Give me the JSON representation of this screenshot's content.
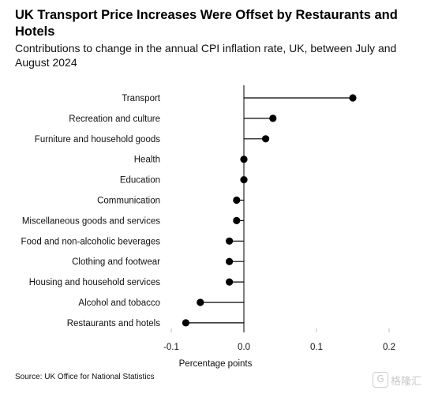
{
  "title": "UK Transport Price Increases Were Offset by Restaurants and Hotels",
  "subtitle": "Contributions to change in the annual CPI inflation rate, UK, between July and August 2024",
  "source": "Source: UK Office for National Statistics",
  "watermark": {
    "icon": "G",
    "text": "格隆汇"
  },
  "colors": {
    "marker": "#000000",
    "axis": "#000000",
    "grid": "#bfbfbf"
  },
  "chart_data": {
    "type": "lollipop",
    "orientation": "horizontal",
    "xlabel": "Percentage points",
    "xlim": [
      -0.1,
      0.2
    ],
    "xticks": [
      -0.1,
      0.0,
      0.1,
      0.2
    ],
    "xtick_labels": [
      "-0.1",
      "0.0",
      "0.1",
      "0.2"
    ],
    "grid": "vertical ticks only",
    "categories": [
      "Transport",
      "Recreation and culture",
      "Furniture and household goods",
      "Health",
      "Education",
      "Communication",
      "Miscellaneous goods and services",
      "Food and non-alcoholic beverages",
      "Clothing and footwear",
      "Housing and household services",
      "Alcohol and tobacco",
      "Restaurants and hotels"
    ],
    "values": [
      0.15,
      0.04,
      0.03,
      0.0,
      0.0,
      -0.01,
      -0.01,
      -0.02,
      -0.02,
      -0.02,
      -0.06,
      -0.08
    ]
  }
}
